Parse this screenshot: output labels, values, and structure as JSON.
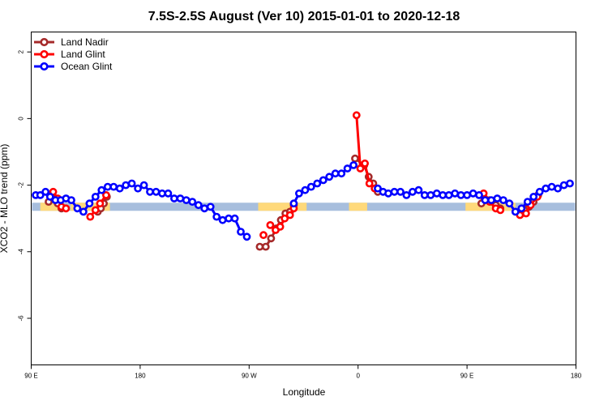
{
  "chart_data": {
    "type": "line",
    "title": "7.5S-2.5S August (Ver 10)   2015-01-01 to 2020-12-18",
    "xlabel": "Longitude",
    "ylabel": "XCO2 - MLO trend (ppm)",
    "xlim": [
      90,
      450
    ],
    "ylim": [
      -7.4,
      2.6
    ],
    "x_ticks": [
      {
        "value": 90,
        "label": "90 E"
      },
      {
        "value": 162,
        "label": "180"
      },
      {
        "value": 234,
        "label": "90 W"
      },
      {
        "value": 306,
        "label": "0"
      },
      {
        "value": 378,
        "label": "90 E"
      },
      {
        "value": 450,
        "label": "180"
      }
    ],
    "y_ticks": [
      {
        "value": 2,
        "label": "2"
      },
      {
        "value": 0,
        "label": "0"
      },
      {
        "value": -2,
        "label": "-2"
      },
      {
        "value": -4,
        "label": "-4"
      },
      {
        "value": -6,
        "label": "-6"
      }
    ],
    "grid": false,
    "legend_position": "top-left",
    "background_band": {
      "y": -2.65,
      "color": "#a7bedd",
      "ocean_color": "#a7bedd",
      "land_color": "#ffd97a",
      "land_segments": [
        [
          96,
          108
        ],
        [
          116,
          142
        ],
        [
          240,
          272
        ],
        [
          300,
          312
        ],
        [
          377,
          410
        ]
      ]
    },
    "series": [
      {
        "name": "Land Nadir",
        "color": "#a52a2a",
        "segments": [
          [
            [
              101.5,
              -2.5
            ],
            [
              103,
              -2.3
            ],
            [
              105.5,
              -2.4
            ],
            [
              107.5,
              -2.55
            ],
            [
              110,
              -2.7
            ]
          ],
          [
            [
              134,
              -2.8
            ],
            [
              136,
              -2.7
            ],
            [
              138,
              -2.55
            ],
            [
              140,
              -2.35
            ]
          ],
          [
            [
              241,
              -3.85
            ],
            [
              245,
              -3.85
            ],
            [
              248.5,
              -3.6
            ],
            [
              252,
              -3.3
            ],
            [
              255,
              -3.05
            ],
            [
              258,
              -2.85
            ],
            [
              261,
              -2.8
            ],
            [
              263.5,
              -2.6
            ]
          ],
          [
            [
              304,
              -1.2
            ],
            [
              310,
              -1.4
            ],
            [
              313,
              -1.75
            ],
            [
              316,
              -1.95
            ],
            [
              319,
              -2.2
            ]
          ],
          [
            [
              387.5,
              -2.55
            ],
            [
              389.5,
              -2.4
            ],
            [
              393,
              -2.45
            ],
            [
              397,
              -2.6
            ],
            [
              400,
              -2.7
            ]
          ],
          [
            [
              416,
              -2.75
            ],
            [
              419,
              -2.65
            ],
            [
              422,
              -2.5
            ],
            [
              425,
              -2.3
            ]
          ]
        ]
      },
      {
        "name": "Land Glint",
        "color": "#ff0000",
        "segments": [
          [
            [
              102.5,
              -2.3
            ],
            [
              104.5,
              -2.2
            ],
            [
              107.5,
              -2.4
            ],
            [
              110,
              -2.65
            ],
            [
              113,
              -2.7
            ]
          ],
          [
            [
              129,
              -2.95
            ],
            [
              132.5,
              -2.75
            ],
            [
              135.5,
              -2.55
            ],
            [
              139.5,
              -2.3
            ]
          ],
          [
            [
              243.5,
              -3.5
            ]
          ],
          [
            [
              248,
              -3.2
            ],
            [
              251.5,
              -3.35
            ],
            [
              254.5,
              -3.25
            ],
            [
              257.5,
              -3.0
            ],
            [
              261,
              -2.9
            ],
            [
              263.5,
              -2.7
            ]
          ],
          [
            [
              305,
              0.1
            ],
            [
              307.5,
              -1.5
            ],
            [
              310.5,
              -1.35
            ],
            [
              313.5,
              -1.95
            ],
            [
              317,
              -2.1
            ]
          ],
          [
            [
              389,
              -2.25
            ],
            [
              393,
              -2.5
            ],
            [
              397,
              -2.7
            ],
            [
              400,
              -2.75
            ]
          ],
          [
            [
              413,
              -2.9
            ],
            [
              417,
              -2.85
            ],
            [
              420,
              -2.6
            ],
            [
              424.5,
              -2.35
            ]
          ]
        ]
      },
      {
        "name": "Ocean Glint",
        "color": "#0000ff",
        "segments": [
          [
            [
              93,
              -2.3
            ],
            [
              96,
              -2.3
            ],
            [
              99.5,
              -2.2
            ],
            [
              102.5,
              -2.35
            ],
            [
              106,
              -2.45
            ],
            [
              109.5,
              -2.45
            ],
            [
              113,
              -2.4
            ],
            [
              116.5,
              -2.45
            ],
            [
              120.5,
              -2.7
            ],
            [
              124.5,
              -2.8
            ],
            [
              128.5,
              -2.55
            ],
            [
              132.5,
              -2.35
            ],
            [
              136.5,
              -2.15
            ],
            [
              140.5,
              -2.05
            ],
            [
              144.5,
              -2.05
            ],
            [
              148.5,
              -2.1
            ],
            [
              152.5,
              -2.0
            ],
            [
              156.5,
              -1.95
            ],
            [
              160.5,
              -2.1
            ],
            [
              164.5,
              -2.0
            ],
            [
              168.5,
              -2.2
            ],
            [
              172.5,
              -2.2
            ],
            [
              176.5,
              -2.25
            ],
            [
              180.5,
              -2.25
            ],
            [
              184.5,
              -2.4
            ],
            [
              188.5,
              -2.4
            ],
            [
              192.5,
              -2.45
            ],
            [
              196.5,
              -2.5
            ],
            [
              200.5,
              -2.6
            ],
            [
              204.5,
              -2.7
            ],
            [
              208.5,
              -2.65
            ],
            [
              212.5,
              -2.95
            ],
            [
              216.5,
              -3.05
            ],
            [
              220.5,
              -3.0
            ],
            [
              224.5,
              -3.0
            ],
            [
              228.5,
              -3.4
            ],
            [
              232.5,
              -3.55
            ]
          ],
          [
            [
              263.5,
              -2.55
            ],
            [
              267,
              -2.25
            ],
            [
              271,
              -2.15
            ],
            [
              275,
              -2.05
            ],
            [
              279,
              -1.95
            ],
            [
              283,
              -1.85
            ],
            [
              287,
              -1.75
            ],
            [
              291,
              -1.65
            ],
            [
              295,
              -1.65
            ],
            [
              299,
              -1.5
            ],
            [
              303,
              -1.4
            ]
          ],
          [
            [
              319,
              -2.1
            ],
            [
              322.5,
              -2.2
            ],
            [
              326,
              -2.25
            ],
            [
              330,
              -2.2
            ],
            [
              334,
              -2.2
            ],
            [
              338,
              -2.3
            ],
            [
              342,
              -2.2
            ],
            [
              346,
              -2.15
            ],
            [
              350,
              -2.3
            ],
            [
              354,
              -2.3
            ],
            [
              358,
              -2.25
            ],
            [
              362,
              -2.3
            ],
            [
              366,
              -2.3
            ],
            [
              370,
              -2.25
            ],
            [
              374,
              -2.3
            ],
            [
              378,
              -2.3
            ],
            [
              382,
              -2.25
            ],
            [
              386,
              -2.3
            ],
            [
              390,
              -2.45
            ],
            [
              394,
              -2.45
            ],
            [
              398,
              -2.4
            ],
            [
              402,
              -2.45
            ],
            [
              406,
              -2.55
            ],
            [
              410,
              -2.8
            ],
            [
              414,
              -2.7
            ],
            [
              418,
              -2.5
            ],
            [
              422,
              -2.35
            ],
            [
              426,
              -2.2
            ],
            [
              430,
              -2.1
            ],
            [
              434,
              -2.05
            ],
            [
              438,
              -2.1
            ],
            [
              442,
              -2.0
            ],
            [
              446,
              -1.95
            ]
          ]
        ]
      }
    ]
  }
}
